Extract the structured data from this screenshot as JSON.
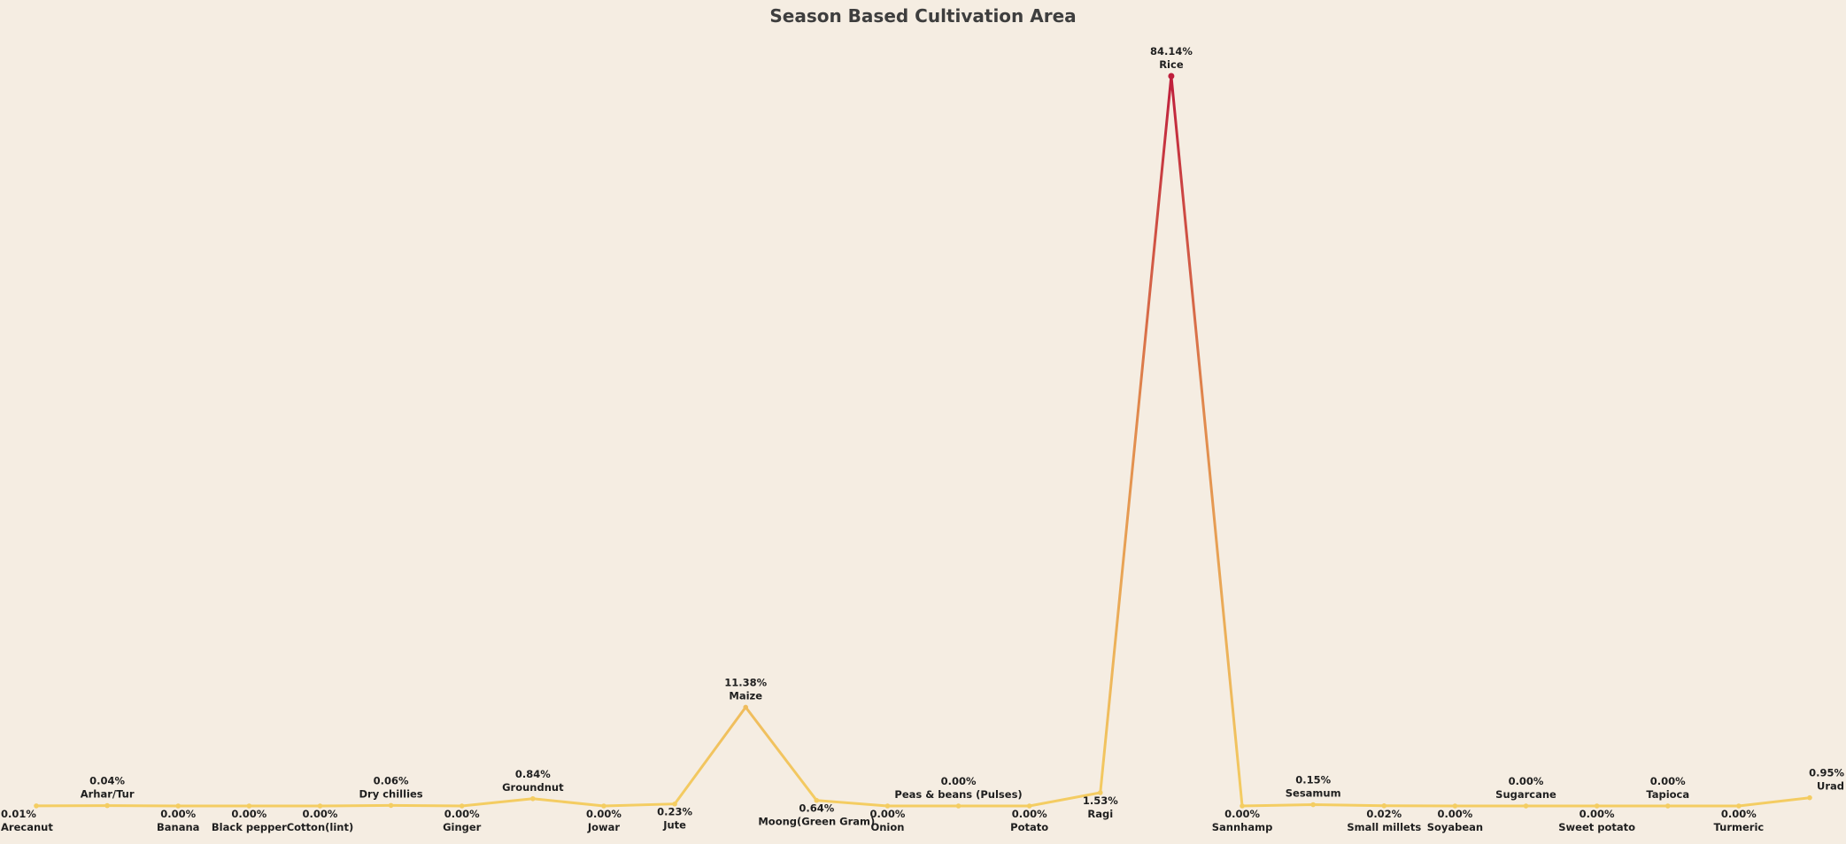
{
  "chart_data": {
    "type": "line",
    "title": "Season Based Cultivation Area",
    "xlabel": "",
    "ylabel": "",
    "ylim": [
      0,
      84.14
    ],
    "grid": false,
    "legend": "none",
    "categories": [
      "Arecanut",
      "Arhar/Tur",
      "Banana",
      "Black pepper",
      "Cotton(lint)",
      "Dry chillies",
      "Ginger",
      "Groundnut",
      "Jowar",
      "Jute",
      "Maize",
      "Moong(Green Gram)",
      "Onion",
      "Peas & beans (Pulses)",
      "Potato",
      "Ragi",
      "Rice",
      "Sannhamp",
      "Sesamum",
      "Small millets",
      "Soyabean",
      "Sugarcane",
      "Sweet potato",
      "Tapioca",
      "Turmeric",
      "Urad"
    ],
    "values": [
      0.01,
      0.04,
      0.0,
      0.0,
      0.0,
      0.06,
      0.0,
      0.84,
      0.0,
      0.23,
      11.38,
      0.64,
      0.0,
      0.0,
      0.0,
      1.53,
      84.14,
      0.0,
      0.15,
      0.02,
      0.0,
      0.0,
      0.0,
      0.0,
      0.0,
      0.95
    ],
    "value_labels": [
      "0.01%",
      "0.04%",
      "0.00%",
      "0.00%",
      "0.00%",
      "0.06%",
      "0.00%",
      "0.84%",
      "0.00%",
      "0.23%",
      "11.38%",
      "0.64%",
      "0.00%",
      "0.00%",
      "0.00%",
      "1.53%",
      "84.14%",
      "0.00%",
      "0.15%",
      "0.02%",
      "0.00%",
      "0.00%",
      "0.00%",
      "0.00%",
      "0.00%",
      "0.95%"
    ],
    "label_position": [
      "below",
      "above",
      "below",
      "below",
      "below",
      "above",
      "below",
      "above",
      "below",
      "below",
      "above",
      "below",
      "below",
      "above",
      "below",
      "below",
      "above",
      "below",
      "above",
      "below",
      "below",
      "above",
      "below",
      "above",
      "below",
      "above"
    ],
    "color_scale": {
      "low": "#f4cd62",
      "mid": "#e0874c",
      "high": "#bf1e3c"
    }
  }
}
